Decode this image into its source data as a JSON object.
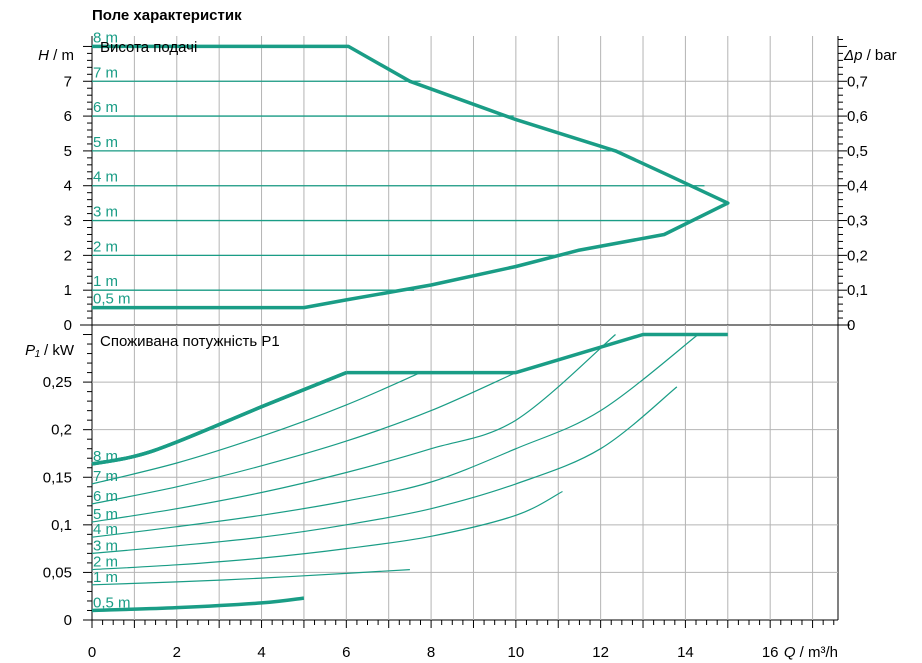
{
  "title": "Поле характеристик",
  "colors": {
    "curve": "#1a9d86",
    "grid": "#b4b4b4",
    "axis": "#000000"
  },
  "chart_data": [
    {
      "type": "line",
      "label": "Висота подачі",
      "y_axis_label": {
        "symbol": "H",
        "unit": " / m"
      },
      "y2_axis_label": {
        "symbol": "Δp",
        "unit": " / bar"
      },
      "x_axis_label": {
        "symbol": "Q",
        "unit": " / m³/h"
      },
      "xlim": [
        0,
        17.6
      ],
      "ylim": [
        0,
        8.3
      ],
      "x_ticks": [
        "0",
        "2",
        "4",
        "6",
        "8",
        "10",
        "12",
        "14",
        "16"
      ],
      "y_ticks": [
        "0",
        "1",
        "2",
        "3",
        "4",
        "5",
        "6",
        "7"
      ],
      "y2_ticks": [
        "0",
        "0,1",
        "0,2",
        "0,3",
        "0,4",
        "0,5",
        "0,6",
        "0,7"
      ],
      "series": [
        {
          "name": "8 m",
          "y": 8,
          "x_end": 6.05
        },
        {
          "name": "7 m",
          "y": 7,
          "x_end": 7.75
        },
        {
          "name": "6 m",
          "y": 6,
          "x_end": 9.95
        },
        {
          "name": "5 m",
          "y": 5,
          "x_end": 12.35
        },
        {
          "name": "4 m",
          "y": 4,
          "x_end": 14.45
        },
        {
          "name": "3 m",
          "y": 3,
          "x_end": 14.15
        },
        {
          "name": "2 m",
          "y": 2,
          "x_end": 10.9
        },
        {
          "name": "1 m",
          "y": 1,
          "x_end": 7.6
        },
        {
          "name": "0,5 m",
          "y": 0.5,
          "x_end": 5.0
        }
      ],
      "envelope": [
        [
          0,
          8
        ],
        [
          6.05,
          8
        ],
        [
          7.5,
          7
        ],
        [
          10,
          5.9
        ],
        [
          12.35,
          5
        ],
        [
          13.6,
          4.3
        ],
        [
          15,
          3.5
        ],
        [
          13.5,
          2.6
        ],
        [
          11.5,
          2.15
        ],
        [
          10,
          1.68
        ],
        [
          8,
          1.15
        ],
        [
          6,
          0.72
        ],
        [
          5,
          0.5
        ],
        [
          0,
          0.5
        ]
      ]
    },
    {
      "type": "line",
      "label": "Споживана потужність P1",
      "y_axis_label": {
        "symbol": "P₁",
        "unit": " / kW"
      },
      "x_axis_label": {
        "symbol": "Q",
        "unit": " / m³/h"
      },
      "xlim": [
        0,
        17.6
      ],
      "ylim": [
        0,
        0.31
      ],
      "x_ticks": [
        "0",
        "2",
        "4",
        "6",
        "8",
        "10",
        "12",
        "14",
        "16"
      ],
      "y_ticks": [
        "0",
        "0,05",
        "0,1",
        "0,15",
        "0,2",
        "0,25"
      ],
      "envelope": [
        [
          0,
          0.164
        ],
        [
          1,
          0.172
        ],
        [
          2,
          0.187
        ],
        [
          4,
          0.224
        ],
        [
          6,
          0.26
        ],
        [
          10,
          0.26
        ],
        [
          13,
          0.3
        ],
        [
          15,
          0.3
        ]
      ],
      "series": [
        {
          "name": "8 m",
          "points": [
            [
              0,
              0.164
            ],
            [
              1,
              0.172
            ],
            [
              2,
              0.187
            ],
            [
              4,
              0.224
            ],
            [
              6,
              0.26
            ]
          ]
        },
        {
          "name": "7 m",
          "points": [
            [
              0,
              0.143
            ],
            [
              2,
              0.165
            ],
            [
              4,
              0.193
            ],
            [
              6,
              0.226
            ],
            [
              7.75,
              0.26
            ]
          ]
        },
        {
          "name": "6 m",
          "points": [
            [
              0,
              0.122
            ],
            [
              2,
              0.14
            ],
            [
              4,
              0.162
            ],
            [
              6,
              0.188
            ],
            [
              8,
              0.22
            ],
            [
              10,
              0.26
            ]
          ]
        },
        {
          "name": "5 m",
          "points": [
            [
              0,
              0.103
            ],
            [
              2,
              0.117
            ],
            [
              4,
              0.134
            ],
            [
              6,
              0.155
            ],
            [
              8,
              0.18
            ],
            [
              10,
              0.21
            ],
            [
              12.35,
              0.3
            ]
          ]
        },
        {
          "name": "4 m",
          "points": [
            [
              0,
              0.087
            ],
            [
              2,
              0.098
            ],
            [
              4,
              0.11
            ],
            [
              6,
              0.125
            ],
            [
              8,
              0.145
            ],
            [
              10,
              0.18
            ],
            [
              12,
              0.22
            ],
            [
              14.3,
              0.3
            ]
          ]
        },
        {
          "name": "3 m",
          "points": [
            [
              0,
              0.07
            ],
            [
              2,
              0.078
            ],
            [
              4,
              0.087
            ],
            [
              6,
              0.1
            ],
            [
              8,
              0.117
            ],
            [
              10,
              0.143
            ],
            [
              12,
              0.18
            ],
            [
              13.8,
              0.245
            ]
          ]
        },
        {
          "name": "2 m",
          "points": [
            [
              0,
              0.053
            ],
            [
              2,
              0.058
            ],
            [
              4,
              0.065
            ],
            [
              6,
              0.075
            ],
            [
              8,
              0.088
            ],
            [
              10,
              0.11
            ],
            [
              11.1,
              0.135
            ]
          ]
        },
        {
          "name": "1 m",
          "points": [
            [
              0,
              0.037
            ],
            [
              2,
              0.04
            ],
            [
              4,
              0.044
            ],
            [
              6,
              0.049
            ],
            [
              7.5,
              0.053
            ]
          ]
        },
        {
          "name": "0,5 m",
          "points": [
            [
              0,
              0.01
            ],
            [
              2,
              0.013
            ],
            [
              4,
              0.018
            ],
            [
              5,
              0.023
            ]
          ]
        }
      ]
    }
  ]
}
